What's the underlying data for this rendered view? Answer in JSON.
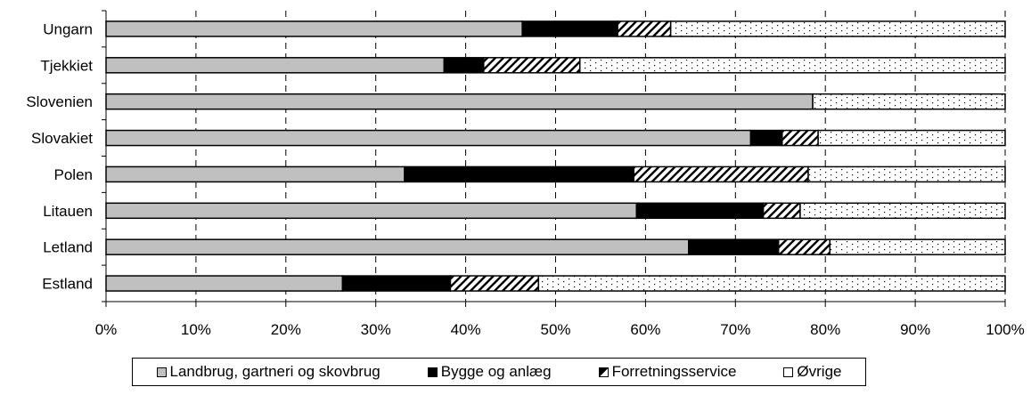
{
  "chart_data": {
    "type": "bar",
    "orientation": "horizontal",
    "stacked": "percent",
    "categories": [
      "Ungarn",
      "Tjekkiet",
      "Slovenien",
      "Slovakiet",
      "Polen",
      "Litauen",
      "Letland",
      "Estland"
    ],
    "series": [
      {
        "name": "Landbrug, gartneri og skovbrug",
        "values": [
          46.3,
          37.6,
          78.6,
          71.7,
          33.2,
          59.0,
          64.8,
          26.3
        ],
        "color": "#c0c0c0",
        "pattern": "solid"
      },
      {
        "name": "Bygge og anlæg",
        "values": [
          10.6,
          4.4,
          0.0,
          3.5,
          25.5,
          14.1,
          10.0,
          12.0
        ],
        "color": "#000000",
        "pattern": "solid"
      },
      {
        "name": "Forretningsservice",
        "values": [
          5.9,
          10.7,
          0.0,
          4.0,
          19.4,
          4.1,
          5.7,
          9.8
        ],
        "color": "#ffffff",
        "pattern": "diagonal-hatch"
      },
      {
        "name": "Øvrige",
        "values": [
          37.2,
          47.3,
          21.4,
          20.8,
          21.9,
          22.8,
          19.5,
          51.9
        ],
        "color": "#ffffff",
        "pattern": "dots"
      }
    ],
    "xlim": [
      0,
      100
    ],
    "x_ticks": [
      "0%",
      "10%",
      "20%",
      "30%",
      "40%",
      "50%",
      "60%",
      "70%",
      "80%",
      "90%",
      "100%"
    ],
    "grid": "vertical-dashed",
    "legend_position": "bottom"
  }
}
